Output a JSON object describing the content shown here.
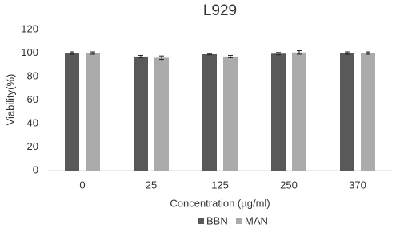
{
  "chart_data": {
    "type": "bar",
    "title": "L929",
    "x_label": "Concentration (µg/ml)",
    "y_label": "Viability(%)",
    "categories": [
      "0",
      "25",
      "125",
      "250",
      "370"
    ],
    "series": [
      {
        "name": "BBN",
        "color": "#595959",
        "values": [
          100,
          97,
          99,
          99.5,
          100
        ],
        "errors": [
          1,
          1,
          0.5,
          1,
          1
        ]
      },
      {
        "name": "MAN",
        "color": "#ababab",
        "values": [
          100,
          96,
          97,
          100.5,
          100
        ],
        "errors": [
          1,
          1.5,
          1,
          1.5,
          1
        ]
      }
    ],
    "ylim": [
      0,
      120
    ],
    "yticks": [
      0,
      20,
      40,
      60,
      80,
      100,
      120
    ],
    "grid": false,
    "legend": "bottom"
  }
}
